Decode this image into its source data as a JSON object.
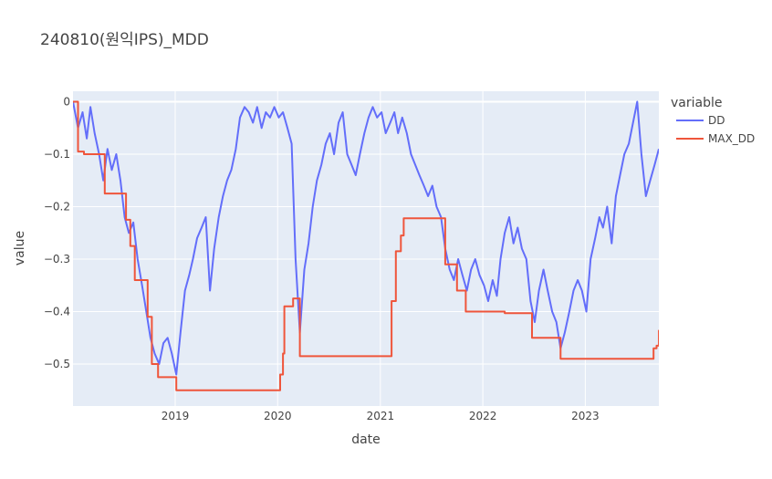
{
  "chart_data": {
    "type": "line",
    "title": "240810(원익IPS)_MDD",
    "xlabel": "date",
    "ylabel": "value",
    "x_range": [
      "2018-01-02",
      "2023-09-20"
    ],
    "ylim": [
      -0.58,
      0.02
    ],
    "x_ticks": [
      "2019",
      "2020",
      "2021",
      "2022",
      "2023"
    ],
    "y_ticks": [
      0,
      -0.1,
      -0.2,
      -0.3,
      -0.4,
      -0.5
    ],
    "y_tick_labels": [
      "0",
      "−0.1",
      "−0.2",
      "−0.3",
      "−0.4",
      "−0.5"
    ],
    "grid": true,
    "legend": {
      "title": "variable",
      "placement": "right"
    },
    "series": [
      {
        "name": "DD",
        "color": "#636efa",
        "points": [
          [
            "2018-01-02",
            0.0
          ],
          [
            "2018-01-20",
            -0.05
          ],
          [
            "2018-02-05",
            -0.02
          ],
          [
            "2018-02-20",
            -0.07
          ],
          [
            "2018-03-05",
            -0.01
          ],
          [
            "2018-03-20",
            -0.06
          ],
          [
            "2018-04-05",
            -0.1
          ],
          [
            "2018-04-20",
            -0.15
          ],
          [
            "2018-05-05",
            -0.09
          ],
          [
            "2018-05-20",
            -0.13
          ],
          [
            "2018-06-05",
            -0.1
          ],
          [
            "2018-06-20",
            -0.15
          ],
          [
            "2018-07-05",
            -0.22
          ],
          [
            "2018-07-20",
            -0.25
          ],
          [
            "2018-08-05",
            -0.23
          ],
          [
            "2018-08-20",
            -0.3
          ],
          [
            "2018-09-05",
            -0.35
          ],
          [
            "2018-09-20",
            -0.4
          ],
          [
            "2018-10-05",
            -0.45
          ],
          [
            "2018-10-20",
            -0.48
          ],
          [
            "2018-11-05",
            -0.5
          ],
          [
            "2018-11-20",
            -0.46
          ],
          [
            "2018-12-05",
            -0.45
          ],
          [
            "2018-12-20",
            -0.48
          ],
          [
            "2019-01-05",
            -0.52
          ],
          [
            "2019-01-20",
            -0.44
          ],
          [
            "2019-02-05",
            -0.36
          ],
          [
            "2019-02-20",
            -0.33
          ],
          [
            "2019-03-05",
            -0.3
          ],
          [
            "2019-03-20",
            -0.26
          ],
          [
            "2019-04-05",
            -0.24
          ],
          [
            "2019-04-20",
            -0.22
          ],
          [
            "2019-05-05",
            -0.36
          ],
          [
            "2019-05-20",
            -0.28
          ],
          [
            "2019-06-05",
            -0.22
          ],
          [
            "2019-06-20",
            -0.18
          ],
          [
            "2019-07-05",
            -0.15
          ],
          [
            "2019-07-20",
            -0.13
          ],
          [
            "2019-08-05",
            -0.09
          ],
          [
            "2019-08-20",
            -0.03
          ],
          [
            "2019-09-05",
            -0.01
          ],
          [
            "2019-09-20",
            -0.02
          ],
          [
            "2019-10-05",
            -0.04
          ],
          [
            "2019-10-20",
            -0.01
          ],
          [
            "2019-11-05",
            -0.05
          ],
          [
            "2019-11-20",
            -0.02
          ],
          [
            "2019-12-05",
            -0.03
          ],
          [
            "2019-12-20",
            -0.01
          ],
          [
            "2020-01-05",
            -0.03
          ],
          [
            "2020-01-20",
            -0.02
          ],
          [
            "2020-02-05",
            -0.05
          ],
          [
            "2020-02-20",
            -0.08
          ],
          [
            "2020-03-05",
            -0.3
          ],
          [
            "2020-03-20",
            -0.44
          ],
          [
            "2020-04-05",
            -0.32
          ],
          [
            "2020-04-20",
            -0.27
          ],
          [
            "2020-05-05",
            -0.2
          ],
          [
            "2020-05-20",
            -0.15
          ],
          [
            "2020-06-05",
            -0.12
          ],
          [
            "2020-06-20",
            -0.08
          ],
          [
            "2020-07-05",
            -0.06
          ],
          [
            "2020-07-20",
            -0.1
          ],
          [
            "2020-08-05",
            -0.04
          ],
          [
            "2020-08-20",
            -0.02
          ],
          [
            "2020-09-05",
            -0.1
          ],
          [
            "2020-09-20",
            -0.12
          ],
          [
            "2020-10-05",
            -0.14
          ],
          [
            "2020-10-20",
            -0.1
          ],
          [
            "2020-11-05",
            -0.06
          ],
          [
            "2020-11-20",
            -0.03
          ],
          [
            "2020-12-05",
            -0.01
          ],
          [
            "2020-12-20",
            -0.03
          ],
          [
            "2021-01-05",
            -0.02
          ],
          [
            "2021-01-20",
            -0.06
          ],
          [
            "2021-02-05",
            -0.04
          ],
          [
            "2021-02-20",
            -0.02
          ],
          [
            "2021-03-05",
            -0.06
          ],
          [
            "2021-03-20",
            -0.03
          ],
          [
            "2021-04-05",
            -0.06
          ],
          [
            "2021-04-20",
            -0.1
          ],
          [
            "2021-05-05",
            -0.12
          ],
          [
            "2021-05-20",
            -0.14
          ],
          [
            "2021-06-05",
            -0.16
          ],
          [
            "2021-06-20",
            -0.18
          ],
          [
            "2021-07-05",
            -0.16
          ],
          [
            "2021-07-20",
            -0.2
          ],
          [
            "2021-08-05",
            -0.22
          ],
          [
            "2021-08-20",
            -0.28
          ],
          [
            "2021-09-05",
            -0.32
          ],
          [
            "2021-09-20",
            -0.34
          ],
          [
            "2021-10-05",
            -0.3
          ],
          [
            "2021-10-20",
            -0.33
          ],
          [
            "2021-11-05",
            -0.36
          ],
          [
            "2021-11-20",
            -0.32
          ],
          [
            "2021-12-05",
            -0.3
          ],
          [
            "2021-12-20",
            -0.33
          ],
          [
            "2022-01-05",
            -0.35
          ],
          [
            "2022-01-20",
            -0.38
          ],
          [
            "2022-02-05",
            -0.34
          ],
          [
            "2022-02-20",
            -0.37
          ],
          [
            "2022-03-05",
            -0.3
          ],
          [
            "2022-03-20",
            -0.25
          ],
          [
            "2022-04-05",
            -0.22
          ],
          [
            "2022-04-20",
            -0.27
          ],
          [
            "2022-05-05",
            -0.24
          ],
          [
            "2022-05-20",
            -0.28
          ],
          [
            "2022-06-05",
            -0.3
          ],
          [
            "2022-06-20",
            -0.38
          ],
          [
            "2022-07-05",
            -0.42
          ],
          [
            "2022-07-20",
            -0.36
          ],
          [
            "2022-08-05",
            -0.32
          ],
          [
            "2022-08-20",
            -0.36
          ],
          [
            "2022-09-05",
            -0.4
          ],
          [
            "2022-09-20",
            -0.42
          ],
          [
            "2022-10-05",
            -0.47
          ],
          [
            "2022-10-20",
            -0.44
          ],
          [
            "2022-11-05",
            -0.4
          ],
          [
            "2022-11-20",
            -0.36
          ],
          [
            "2022-12-05",
            -0.34
          ],
          [
            "2022-12-20",
            -0.36
          ],
          [
            "2023-01-05",
            -0.4
          ],
          [
            "2023-01-20",
            -0.3
          ],
          [
            "2023-02-05",
            -0.26
          ],
          [
            "2023-02-20",
            -0.22
          ],
          [
            "2023-03-05",
            -0.24
          ],
          [
            "2023-03-20",
            -0.2
          ],
          [
            "2023-04-05",
            -0.27
          ],
          [
            "2023-04-20",
            -0.18
          ],
          [
            "2023-05-05",
            -0.14
          ],
          [
            "2023-05-20",
            -0.1
          ],
          [
            "2023-06-05",
            -0.08
          ],
          [
            "2023-06-20",
            -0.04
          ],
          [
            "2023-07-05",
            0.0
          ],
          [
            "2023-07-20",
            -0.1
          ],
          [
            "2023-08-05",
            -0.18
          ],
          [
            "2023-08-20",
            -0.15
          ],
          [
            "2023-09-05",
            -0.12
          ],
          [
            "2023-09-20",
            -0.09
          ]
        ]
      },
      {
        "name": "MAX_DD",
        "color": "#ef553b",
        "points": [
          [
            "2018-01-02",
            0.0
          ],
          [
            "2018-01-20",
            -0.095
          ],
          [
            "2018-02-10",
            -0.1
          ],
          [
            "2018-04-10",
            -0.1
          ],
          [
            "2018-04-25",
            -0.175
          ],
          [
            "2018-06-20",
            -0.175
          ],
          [
            "2018-07-10",
            -0.225
          ],
          [
            "2018-07-25",
            -0.275
          ],
          [
            "2018-08-10",
            -0.34
          ],
          [
            "2018-09-05",
            -0.34
          ],
          [
            "2018-09-25",
            -0.41
          ],
          [
            "2018-10-10",
            -0.5
          ],
          [
            "2018-11-01",
            -0.525
          ],
          [
            "2018-12-28",
            -0.525
          ],
          [
            "2019-01-05",
            -0.55
          ],
          [
            "2019-12-20",
            -0.55
          ],
          [
            "2020-01-10",
            -0.52
          ],
          [
            "2020-01-20",
            -0.48
          ],
          [
            "2020-01-25",
            -0.39
          ],
          [
            "2020-02-20",
            -0.39
          ],
          [
            "2020-02-25",
            -0.375
          ],
          [
            "2020-03-15",
            -0.375
          ],
          [
            "2020-03-20",
            -0.485
          ],
          [
            "2021-02-05",
            -0.485
          ],
          [
            "2021-02-10",
            -0.38
          ],
          [
            "2021-02-25",
            -0.285
          ],
          [
            "2021-03-15",
            -0.255
          ],
          [
            "2021-03-25",
            -0.222
          ],
          [
            "2021-08-10",
            -0.222
          ],
          [
            "2021-08-20",
            -0.31
          ],
          [
            "2021-09-20",
            -0.31
          ],
          [
            "2021-10-01",
            -0.36
          ],
          [
            "2021-10-25",
            -0.36
          ],
          [
            "2021-11-01",
            -0.4
          ],
          [
            "2022-03-15",
            -0.4
          ],
          [
            "2022-03-20",
            -0.403
          ],
          [
            "2022-06-20",
            -0.403
          ],
          [
            "2022-06-25",
            -0.45
          ],
          [
            "2022-09-25",
            -0.45
          ],
          [
            "2022-10-05",
            -0.49
          ],
          [
            "2023-08-20",
            -0.49
          ],
          [
            "2023-09-01",
            -0.47
          ],
          [
            "2023-09-12",
            -0.465
          ],
          [
            "2023-09-20",
            -0.435
          ]
        ]
      }
    ]
  }
}
